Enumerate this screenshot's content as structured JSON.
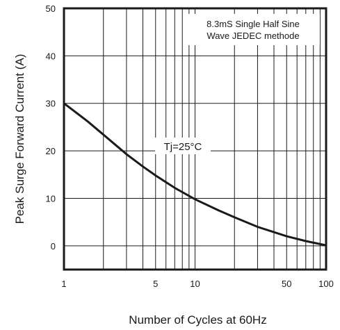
{
  "chart_data": {
    "type": "line",
    "xlabel": "Number of Cycles at 60Hz",
    "ylabel": "Peak Surge Forward Current (A)",
    "x_scale": "log",
    "xlim": [
      1,
      100
    ],
    "ylim": [
      -5,
      50
    ],
    "x_ticks": [
      {
        "value": 1,
        "label": "1"
      },
      {
        "value": 5,
        "label": "5"
      },
      {
        "value": 10,
        "label": "10"
      },
      {
        "value": 50,
        "label": "50"
      },
      {
        "value": 100,
        "label": "100"
      }
    ],
    "y_ticks": [
      {
        "value": 0,
        "label": "0"
      },
      {
        "value": 10,
        "label": "10"
      },
      {
        "value": 20,
        "label": "20"
      },
      {
        "value": 30,
        "label": "30"
      },
      {
        "value": 40,
        "label": "40"
      },
      {
        "value": 50,
        "label": "50"
      }
    ],
    "grid": true,
    "series": [
      {
        "x": [
          1,
          1.5,
          2,
          3,
          4,
          5,
          7,
          10,
          15,
          20,
          30,
          50,
          70,
          100
        ],
        "y": [
          30,
          26.3,
          23.4,
          19.3,
          16.7,
          14.8,
          12.2,
          9.8,
          7.5,
          6,
          4,
          2,
          1,
          0.1
        ]
      }
    ],
    "annotations": {
      "box_line1": "8.3mS Single Half Sine",
      "box_line2": "Wave JEDEC methode",
      "condition": "Tj=25°C"
    },
    "colors": {
      "line": "#1a1a1a",
      "grid": "#1a1a1a"
    }
  }
}
